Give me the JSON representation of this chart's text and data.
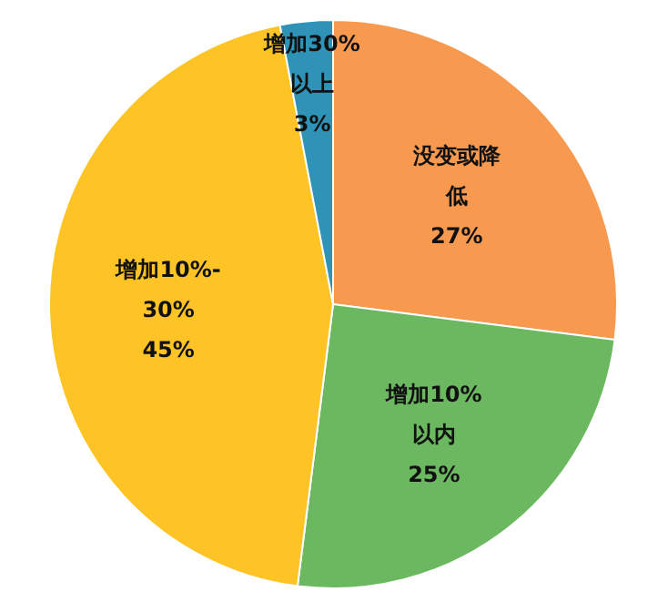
{
  "chart_data": {
    "type": "pie",
    "categories": [
      "没变或降低",
      "增加10%以内",
      "增加10%-30%",
      "增加30%以上"
    ],
    "values": [
      27,
      25,
      45,
      3
    ],
    "value_labels": [
      "27%",
      "25%",
      "45%",
      "3%"
    ],
    "colors": [
      "#f79a50",
      "#6cb861",
      "#fec425",
      "#2e93b6"
    ]
  }
}
